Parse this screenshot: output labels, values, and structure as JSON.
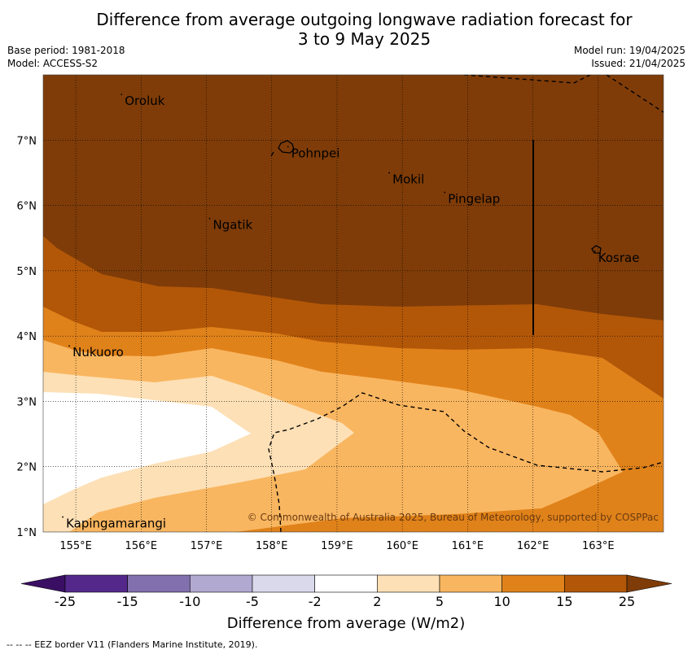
{
  "title_line1": "Difference from average outgoing longwave radiation forecast for",
  "title_line2": "3 to 9 May 2025",
  "base_period": "Base period: 1981-2018",
  "model": "Model: ACCESS-S2",
  "model_run": "Model run: 19/04/2025",
  "issued": "Issued: 21/04/2025",
  "map": {
    "lon_range": [
      154.5,
      164.0
    ],
    "lat_range": [
      1.0,
      8.0
    ],
    "lon_ticks": [
      "155°E",
      "156°E",
      "157°E",
      "158°E",
      "159°E",
      "160°E",
      "161°E",
      "162°E",
      "163°E"
    ],
    "lat_ticks": [
      "1°N",
      "2°N",
      "3°N",
      "4°N",
      "5°N",
      "6°N",
      "7°N"
    ],
    "places": [
      {
        "name": "Oroluk",
        "lon": 155.75,
        "lat": 7.6
      },
      {
        "name": "Pohnpei",
        "lon": 158.3,
        "lat": 6.8
      },
      {
        "name": "Mokil",
        "lon": 159.85,
        "lat": 6.4
      },
      {
        "name": "Pingelap",
        "lon": 160.7,
        "lat": 6.1
      },
      {
        "name": "Ngatik",
        "lon": 157.1,
        "lat": 5.7
      },
      {
        "name": "Kosrae",
        "lon": 163.0,
        "lat": 5.2
      },
      {
        "name": "Nukuoro",
        "lon": 154.95,
        "lat": 3.75
      },
      {
        "name": "Kapingamarangi",
        "lon": 154.85,
        "lat": 1.13
      }
    ],
    "copyright": "© Commonwealth of Australia 2025, Bureau of Meteorology, supported by COSPPac"
  },
  "colorbar": {
    "labels": [
      "-25",
      "-15",
      "-10",
      "-5",
      "-2",
      "2",
      "5",
      "10",
      "15",
      "25"
    ],
    "colors": [
      "#3a0f63",
      "#54288a",
      "#8170ad",
      "#b2a9d1",
      "#dad9ec",
      "#ffffff",
      "#fde0b6",
      "#f9b660",
      "#e0821a",
      "#b25708",
      "#7f3c08"
    ],
    "title": "Difference from average (W/m2)"
  },
  "footnote": "--  --  -- EEZ border V11 (Flanders Marine Institute, 2019)."
}
